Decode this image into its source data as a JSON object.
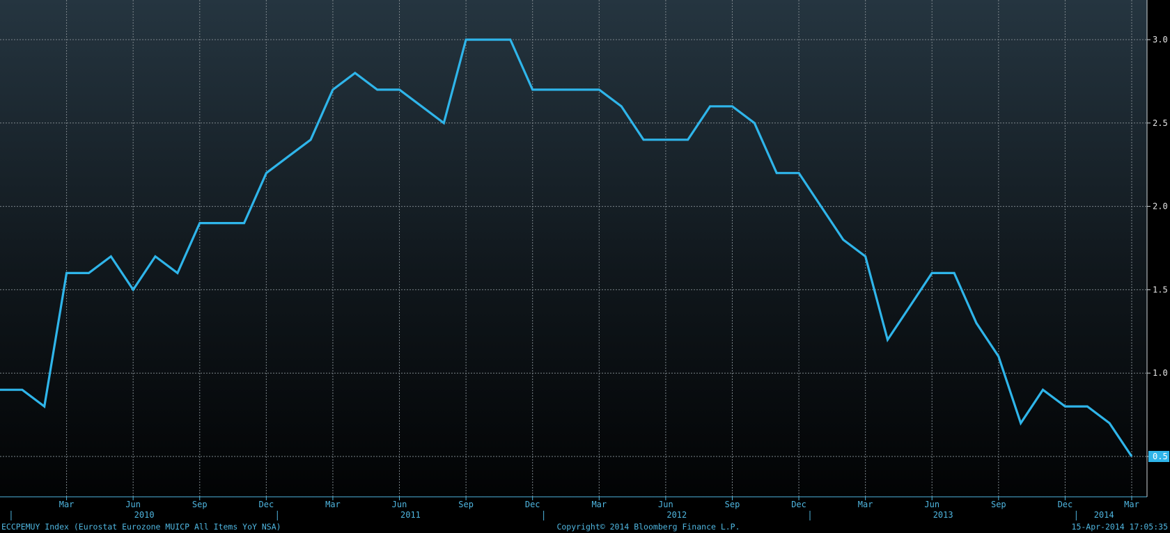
{
  "chart_data": {
    "type": "line",
    "title": "",
    "xlabel": "",
    "ylabel": "",
    "x": [
      "2009-12",
      "2010-01",
      "2010-02",
      "2010-03",
      "2010-04",
      "2010-05",
      "2010-06",
      "2010-07",
      "2010-08",
      "2010-09",
      "2010-10",
      "2010-11",
      "2010-12",
      "2011-01",
      "2011-02",
      "2011-03",
      "2011-04",
      "2011-05",
      "2011-06",
      "2011-07",
      "2011-08",
      "2011-09",
      "2011-10",
      "2011-11",
      "2011-12",
      "2012-01",
      "2012-02",
      "2012-03",
      "2012-04",
      "2012-05",
      "2012-06",
      "2012-07",
      "2012-08",
      "2012-09",
      "2012-10",
      "2012-11",
      "2012-12",
      "2013-01",
      "2013-02",
      "2013-03",
      "2013-04",
      "2013-05",
      "2013-06",
      "2013-07",
      "2013-08",
      "2013-09",
      "2013-10",
      "2013-11",
      "2013-12",
      "2014-01",
      "2014-02",
      "2014-03"
    ],
    "series": [
      {
        "values": [
          0.9,
          0.9,
          0.8,
          1.6,
          1.6,
          1.7,
          1.5,
          1.7,
          1.6,
          1.9,
          1.9,
          1.9,
          2.2,
          2.3,
          2.4,
          2.7,
          2.8,
          2.7,
          2.7,
          2.6,
          2.5,
          3.0,
          3.0,
          3.0,
          2.7,
          2.7,
          2.7,
          2.7,
          2.6,
          2.4,
          2.4,
          2.4,
          2.6,
          2.6,
          2.5,
          2.2,
          2.2,
          2.0,
          1.8,
          1.7,
          1.2,
          1.4,
          1.6,
          1.6,
          1.3,
          1.1,
          0.7,
          0.9,
          0.8,
          0.8,
          0.7,
          0.5
        ],
        "color": "#2fb5ea"
      }
    ],
    "ylim": [
      0.25,
      3.15
    ],
    "y_ticks": [
      "0.5",
      "1.0",
      "1.5",
      "2.0",
      "2.5",
      "3.0"
    ],
    "y_axis_side": "right",
    "x_month_ticks": [
      "Mar",
      "Jun",
      "Sep",
      "Dec",
      "Mar",
      "Jun",
      "Sep",
      "Dec",
      "Mar",
      "Jun",
      "Sep",
      "Dec",
      "Mar",
      "Jun",
      "Sep",
      "Dec",
      "Mar"
    ],
    "x_year_labels": [
      "2010",
      "2011",
      "2012",
      "2013",
      "2014"
    ],
    "last_value_label": "0.5",
    "grid": true,
    "legend": "none"
  },
  "footer": {
    "ticker": "ECCPEMUY Index (Eurostat Eurozone MUICP All Items YoY NSA)",
    "copyright": "Copyright© 2014 Bloomberg Finance L.P.",
    "timestamp": "15-Apr-2014 17:05:35"
  }
}
